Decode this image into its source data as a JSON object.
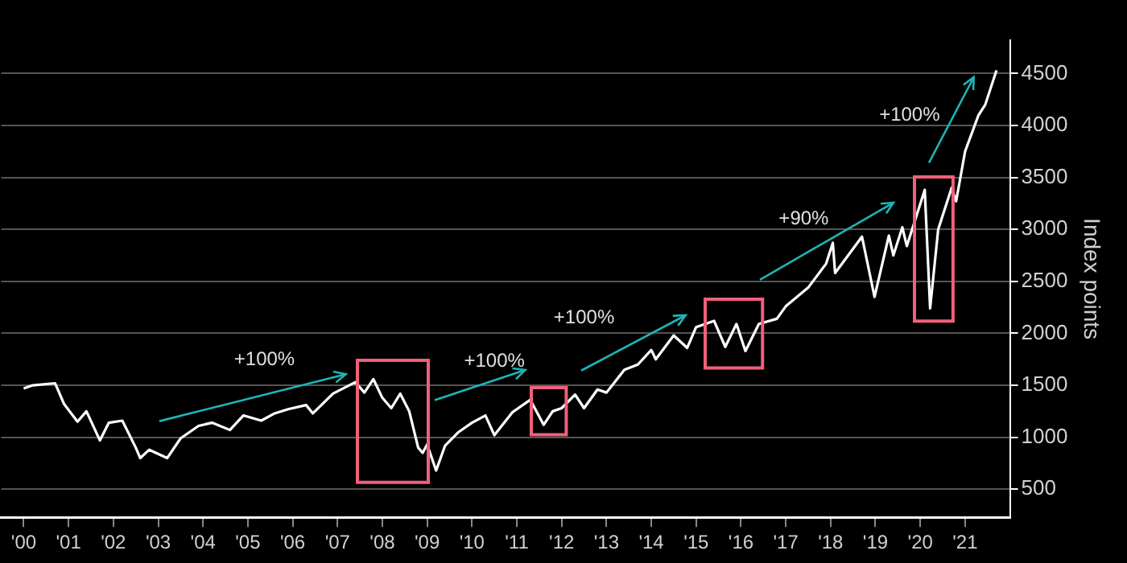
{
  "chart_data": {
    "type": "line",
    "ylabel": "Index points",
    "x": [
      2000.0,
      2000.2,
      2000.7,
      2000.9,
      2001.2,
      2001.4,
      2001.7,
      2001.9,
      2002.2,
      2002.5,
      2002.6,
      2002.8,
      2003.2,
      2003.5,
      2003.9,
      2004.2,
      2004.6,
      2004.9,
      2005.3,
      2005.6,
      2005.9,
      2006.3,
      2006.45,
      2006.9,
      2007.4,
      2007.6,
      2007.8,
      2008.0,
      2008.2,
      2008.4,
      2008.6,
      2008.8,
      2008.9,
      2009.0,
      2009.2,
      2009.4,
      2009.7,
      2010.0,
      2010.3,
      2010.5,
      2010.9,
      2011.3,
      2011.6,
      2011.8,
      2012.0,
      2012.3,
      2012.5,
      2012.8,
      2013.0,
      2013.4,
      2013.7,
      2014.0,
      2014.1,
      2014.5,
      2014.8,
      2015.0,
      2015.4,
      2015.65,
      2015.9,
      2016.1,
      2016.4,
      2016.8,
      2017.0,
      2017.5,
      2017.9,
      2018.05,
      2018.1,
      2018.7,
      2018.98,
      2019.3,
      2019.4,
      2019.6,
      2019.7,
      2020.1,
      2020.22,
      2020.4,
      2020.7,
      2020.8,
      2021.0,
      2021.3,
      2021.45,
      2021.7
    ],
    "series": [
      {
        "color": "#ffffff",
        "values": [
          1470,
          1500,
          1520,
          1320,
          1150,
          1250,
          970,
          1140,
          1160,
          900,
          800,
          880,
          800,
          990,
          1110,
          1140,
          1070,
          1210,
          1160,
          1230,
          1270,
          1310,
          1230,
          1420,
          1530,
          1430,
          1560,
          1380,
          1280,
          1420,
          1250,
          900,
          850,
          930,
          680,
          920,
          1050,
          1140,
          1210,
          1020,
          1240,
          1360,
          1120,
          1250,
          1280,
          1410,
          1280,
          1460,
          1430,
          1650,
          1700,
          1840,
          1750,
          1980,
          1860,
          2060,
          2120,
          1870,
          2090,
          1830,
          2090,
          2140,
          2260,
          2440,
          2670,
          2870,
          2580,
          2930,
          2350,
          2940,
          2750,
          3020,
          2840,
          3380,
          2240,
          3000,
          3400,
          3270,
          3750,
          4100,
          4200,
          4530
        ]
      }
    ],
    "xlim": [
      1999.5,
      2022
    ],
    "xticks": [
      {
        "value": 2000,
        "label": "'00"
      },
      {
        "value": 2001,
        "label": "'01"
      },
      {
        "value": 2002,
        "label": "'02"
      },
      {
        "value": 2003,
        "label": "'03"
      },
      {
        "value": 2004,
        "label": "'04"
      },
      {
        "value": 2005,
        "label": "'05"
      },
      {
        "value": 2006,
        "label": "'06"
      },
      {
        "value": 2007,
        "label": "'07"
      },
      {
        "value": 2008,
        "label": "'08"
      },
      {
        "value": 2009,
        "label": "'09"
      },
      {
        "value": 2010,
        "label": "'10"
      },
      {
        "value": 2011,
        "label": "'11"
      },
      {
        "value": 2012,
        "label": "'12"
      },
      {
        "value": 2013,
        "label": "'13"
      },
      {
        "value": 2014,
        "label": "'14"
      },
      {
        "value": 2015,
        "label": "'15"
      },
      {
        "value": 2016,
        "label": "'16"
      },
      {
        "value": 2017,
        "label": "'17"
      },
      {
        "value": 2018,
        "label": "'18"
      },
      {
        "value": 2019,
        "label": "'19"
      },
      {
        "value": 2020,
        "label": "'20"
      },
      {
        "value": 2021,
        "label": "'21"
      }
    ],
    "ylim": [
      230,
      4820
    ],
    "yticks": [
      500,
      1000,
      1500,
      2000,
      2500,
      3000,
      3500,
      4000,
      4500
    ],
    "grid": "y",
    "marker": "none",
    "line_style": "solid",
    "annotations": [
      "+100%",
      "+100%",
      "+100%",
      "+90%",
      "+100%"
    ]
  }
}
